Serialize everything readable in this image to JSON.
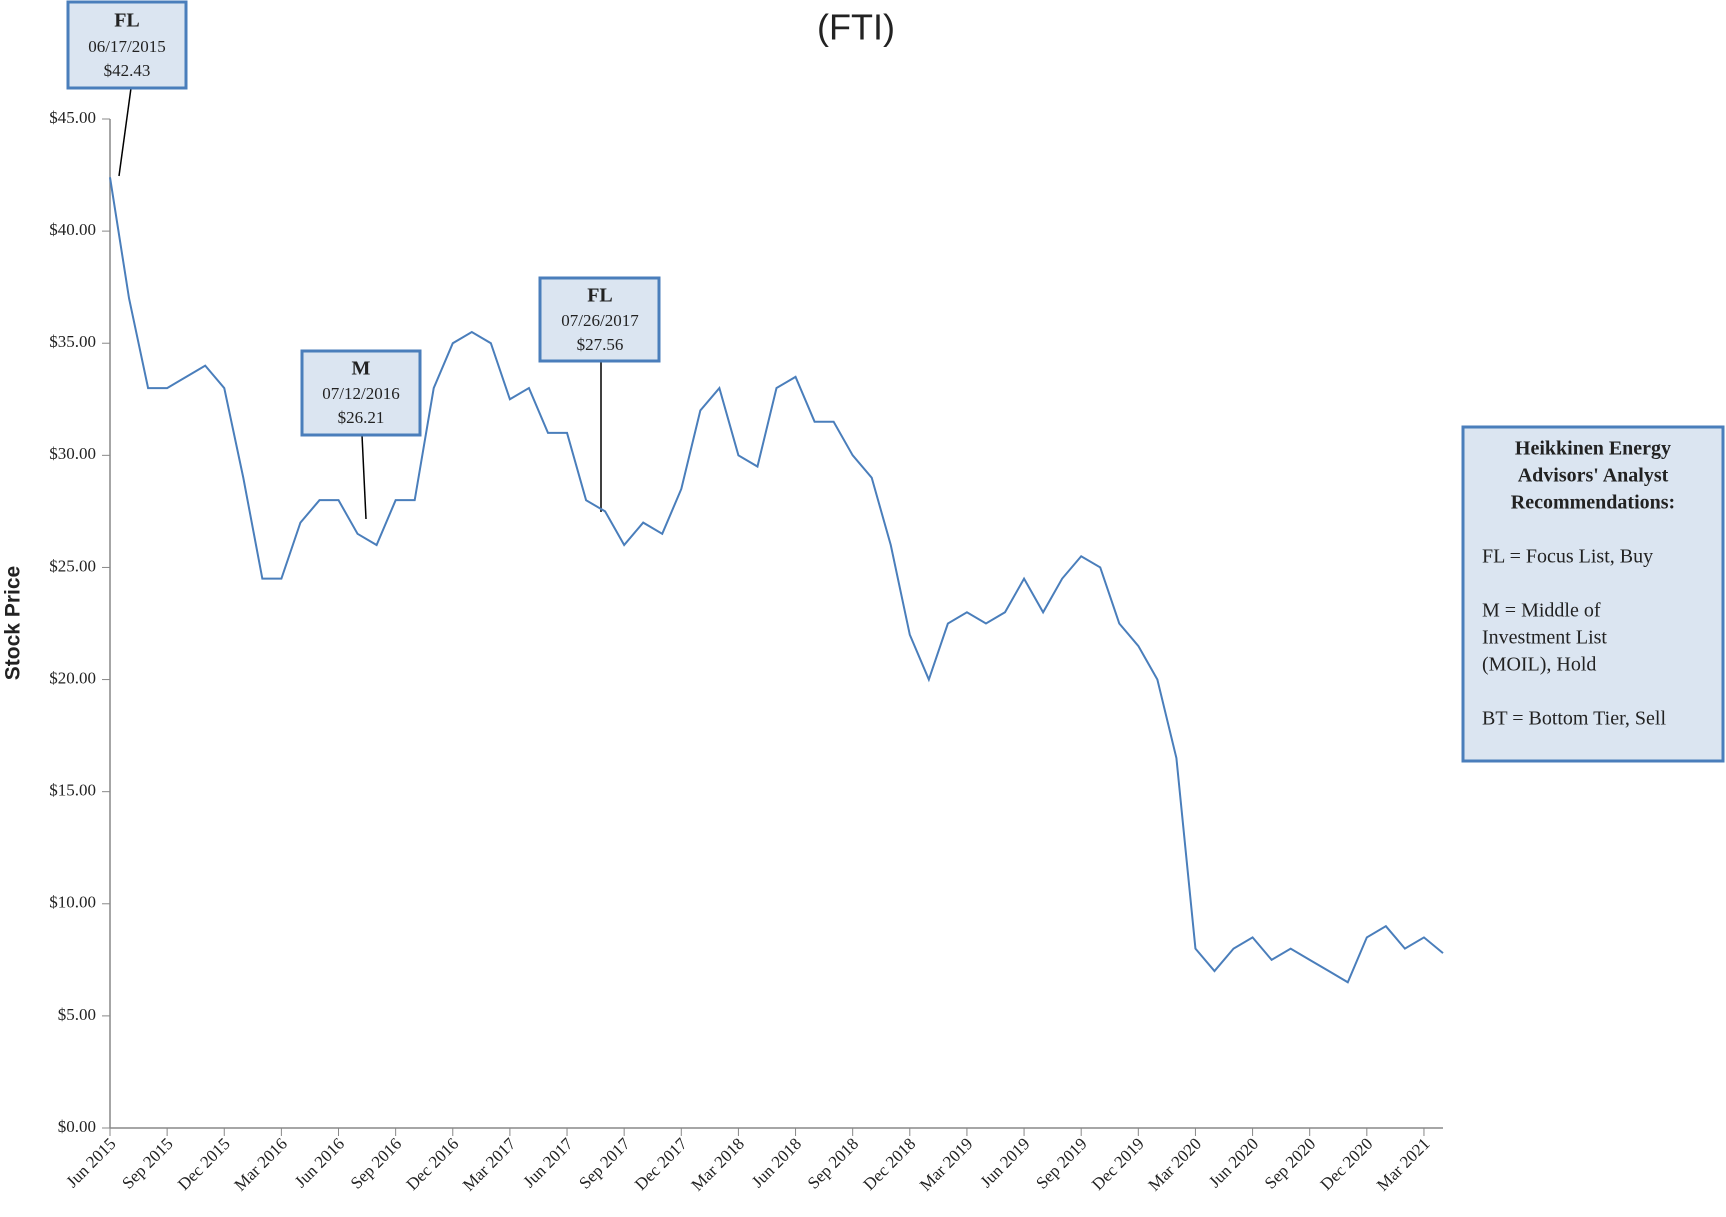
{
  "chart_data": {
    "type": "line",
    "title": "(FTI)",
    "y_label": "Stock Price",
    "x": [
      "2015-06",
      "2015-07",
      "2015-08",
      "2015-09",
      "2015-10",
      "2015-11",
      "2015-12",
      "2016-01",
      "2016-02",
      "2016-03",
      "2016-04",
      "2016-05",
      "2016-06",
      "2016-07",
      "2016-08",
      "2016-09",
      "2016-10",
      "2016-11",
      "2016-12",
      "2017-01",
      "2017-02",
      "2017-03",
      "2017-04",
      "2017-05",
      "2017-06",
      "2017-07",
      "2017-08",
      "2017-09",
      "2017-10",
      "2017-11",
      "2017-12",
      "2018-01",
      "2018-02",
      "2018-03",
      "2018-04",
      "2018-05",
      "2018-06",
      "2018-07",
      "2018-08",
      "2018-09",
      "2018-10",
      "2018-11",
      "2018-12",
      "2019-01",
      "2019-02",
      "2019-03",
      "2019-04",
      "2019-05",
      "2019-06",
      "2019-07",
      "2019-08",
      "2019-09",
      "2019-10",
      "2019-11",
      "2019-12",
      "2020-01",
      "2020-02",
      "2020-03",
      "2020-04",
      "2020-05",
      "2020-06",
      "2020-07",
      "2020-08",
      "2020-09",
      "2020-10",
      "2020-11",
      "2020-12",
      "2021-01",
      "2021-02",
      "2021-03",
      "2021-04"
    ],
    "series": [
      {
        "name": "FTI",
        "color": "#4a7ebb",
        "values": [
          42.4,
          37,
          33,
          33,
          33.5,
          34,
          33,
          29,
          24.5,
          24.5,
          27,
          28,
          28,
          26.5,
          26,
          28,
          28,
          33,
          35,
          35.5,
          35,
          32.5,
          33,
          31,
          31,
          28,
          27.5,
          26,
          27,
          26.5,
          28.5,
          32,
          33,
          30,
          29.5,
          33,
          33.5,
          31.5,
          31.5,
          30,
          29,
          26,
          22,
          20,
          22.5,
          23,
          22.5,
          23,
          24.5,
          23,
          24.5,
          25.5,
          25,
          22.5,
          21.5,
          20,
          16.5,
          8,
          7,
          8,
          8.5,
          7.5,
          8,
          7.5,
          7,
          6.5,
          8.5,
          9,
          8,
          8.5,
          7.8
        ]
      }
    ],
    "xlim": [
      "2015-06",
      "2021-04"
    ],
    "xticks": [
      {
        "value": "2015-06",
        "label": "Jun 2015"
      },
      {
        "value": "2015-09",
        "label": "Sep 2015"
      },
      {
        "value": "2015-12",
        "label": "Dec 2015"
      },
      {
        "value": "2016-03",
        "label": "Mar 2016"
      },
      {
        "value": "2016-06",
        "label": "Jun 2016"
      },
      {
        "value": "2016-09",
        "label": "Sep 2016"
      },
      {
        "value": "2016-12",
        "label": "Dec 2016"
      },
      {
        "value": "2017-03",
        "label": "Mar 2017"
      },
      {
        "value": "2017-06",
        "label": "Jun 2017"
      },
      {
        "value": "2017-09",
        "label": "Sep 2017"
      },
      {
        "value": "2017-12",
        "label": "Dec 2017"
      },
      {
        "value": "2018-03",
        "label": "Mar 2018"
      },
      {
        "value": "2018-06",
        "label": "Jun 2018"
      },
      {
        "value": "2018-09",
        "label": "Sep 2018"
      },
      {
        "value": "2018-12",
        "label": "Dec 2018"
      },
      {
        "value": "2019-03",
        "label": "Mar 2019"
      },
      {
        "value": "2019-06",
        "label": "Jun 2019"
      },
      {
        "value": "2019-09",
        "label": "Sep 2019"
      },
      {
        "value": "2019-12",
        "label": "Dec 2019"
      },
      {
        "value": "2020-03",
        "label": "Mar 2020"
      },
      {
        "value": "2020-06",
        "label": "Jun 2020"
      },
      {
        "value": "2020-09",
        "label": "Sep 2020"
      },
      {
        "value": "2020-12",
        "label": "Dec 2020"
      },
      {
        "value": "2021-03",
        "label": "Mar 2021"
      }
    ],
    "ylim": [
      0,
      45
    ],
    "yticks": [
      {
        "value": 0,
        "label": "$0.00"
      },
      {
        "value": 5,
        "label": "$5.00"
      },
      {
        "value": 10,
        "label": "$10.00"
      },
      {
        "value": 15,
        "label": "$15.00"
      },
      {
        "value": 20,
        "label": "$20.00"
      },
      {
        "value": 25,
        "label": "$25.00"
      },
      {
        "value": 30,
        "label": "$30.00"
      },
      {
        "value": 35,
        "label": "$35.00"
      },
      {
        "value": 40,
        "label": "$40.00"
      },
      {
        "value": 45,
        "label": "$45.00"
      }
    ],
    "annotations": [
      {
        "label": "FL",
        "date": "06/17/2015",
        "price": "$42.43"
      },
      {
        "label": "M",
        "date": "07/12/2016",
        "price": "$26.21"
      },
      {
        "label": "FL",
        "date": "07/26/2017",
        "price": "$27.56"
      }
    ],
    "legend_box": {
      "title": [
        "Heikkinen Energy",
        "Advisors' Analyst",
        "Recommendations:"
      ],
      "lines": [
        "FL = Focus List, Buy",
        "M = Middle of",
        "Investment List",
        "(MOIL), Hold",
        "BT = Bottom Tier, Sell"
      ]
    }
  }
}
